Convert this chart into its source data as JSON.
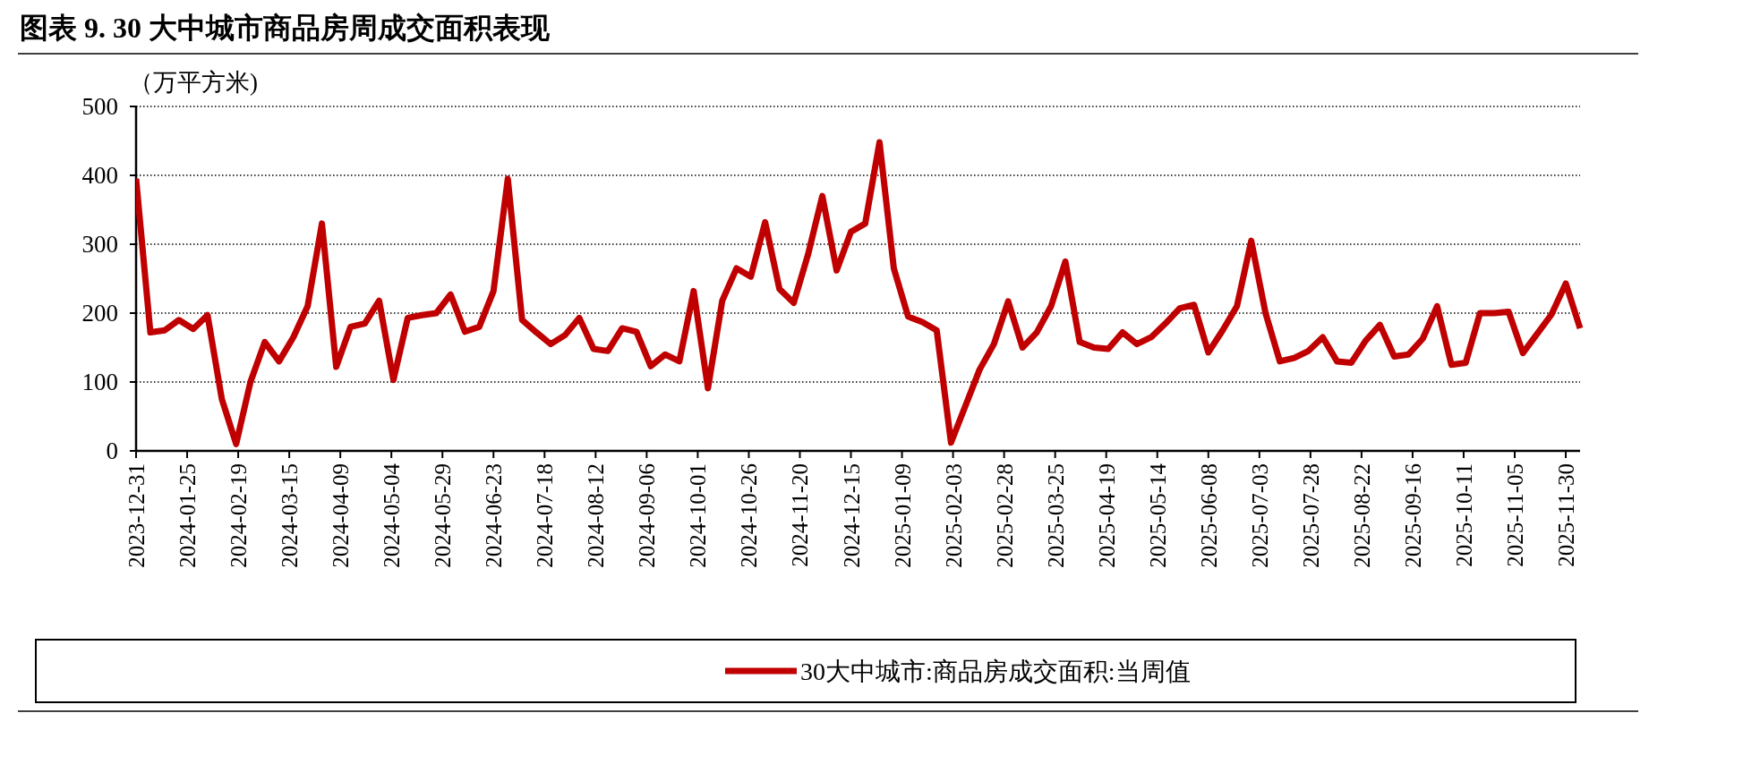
{
  "chart_data": {
    "type": "line",
    "title": "图表 9. 30 大中城市商品房周成交面积表现",
    "ylabel": "（万平方米)",
    "x": [
      "2023-12-31",
      "2024-01-07",
      "2024-01-14",
      "2024-01-21",
      "2024-01-28",
      "2024-02-04",
      "2024-02-11",
      "2024-02-18",
      "2024-02-25",
      "2024-03-03",
      "2024-03-10",
      "2024-03-17",
      "2024-03-24",
      "2024-03-31",
      "2024-04-07",
      "2024-04-14",
      "2024-04-21",
      "2024-04-28",
      "2024-05-05",
      "2024-05-12",
      "2024-05-19",
      "2024-05-26",
      "2024-06-02",
      "2024-06-09",
      "2024-06-16",
      "2024-06-23",
      "2024-06-30",
      "2024-07-07",
      "2024-07-14",
      "2024-07-21",
      "2024-07-28",
      "2024-08-04",
      "2024-08-11",
      "2024-08-18",
      "2024-08-25",
      "2024-09-01",
      "2024-09-08",
      "2024-09-15",
      "2024-09-22",
      "2024-09-29",
      "2024-10-06",
      "2024-10-13",
      "2024-10-20",
      "2024-10-27",
      "2024-11-03",
      "2024-11-10",
      "2024-11-17",
      "2024-11-24",
      "2024-12-01",
      "2024-12-08",
      "2024-12-15",
      "2024-12-22",
      "2024-12-29",
      "2025-01-05",
      "2025-01-12",
      "2025-01-19",
      "2025-01-26",
      "2025-02-02",
      "2025-02-09",
      "2025-02-16",
      "2025-02-23",
      "2025-03-02",
      "2025-03-09",
      "2025-03-16",
      "2025-03-23",
      "2025-03-30",
      "2025-04-06",
      "2025-04-13",
      "2025-04-20",
      "2025-04-27",
      "2025-05-04",
      "2025-05-11",
      "2025-05-18",
      "2025-05-25",
      "2025-06-01",
      "2025-06-08",
      "2025-06-15",
      "2025-06-22",
      "2025-06-29",
      "2025-07-06",
      "2025-07-13",
      "2025-07-20",
      "2025-07-27",
      "2025-08-03",
      "2025-08-10",
      "2025-08-17",
      "2025-08-24",
      "2025-08-31",
      "2025-09-07",
      "2025-09-14",
      "2025-09-21",
      "2025-09-28",
      "2025-10-05",
      "2025-10-12",
      "2025-10-19",
      "2025-10-26",
      "2025-11-02",
      "2025-11-09",
      "2025-11-16",
      "2025-11-23",
      "2025-11-30",
      "2025-12-07"
    ],
    "series": [
      {
        "name": "30大中城市:商品房成交面积:当周值",
        "color": "#c00000",
        "values": [
          395,
          172,
          175,
          190,
          177,
          197,
          75,
          10,
          100,
          158,
          130,
          165,
          210,
          330,
          122,
          180,
          185,
          218,
          103,
          193,
          197,
          200,
          227,
          173,
          180,
          232,
          395,
          190,
          172,
          155,
          168,
          193,
          148,
          145,
          178,
          173,
          123,
          140,
          130,
          232,
          91,
          218,
          265,
          253,
          332,
          235,
          215,
          285,
          370,
          262,
          318,
          330,
          448,
          265,
          195,
          187,
          175,
          12,
          65,
          118,
          155,
          217,
          150,
          172,
          210,
          275,
          158,
          150,
          148,
          172,
          155,
          165,
          185,
          207,
          212,
          143,
          175,
          210,
          305,
          200,
          130,
          135,
          145,
          165,
          130,
          128,
          160,
          183,
          137,
          140,
          163,
          210,
          125,
          128,
          200,
          200,
          202,
          142,
          170,
          198,
          243,
          178
        ]
      }
    ],
    "xlim": [
      "2023-12-31",
      "2025-12-07"
    ],
    "xticks": [
      "2023-12-31",
      "2024-01-25",
      "2024-02-19",
      "2024-03-15",
      "2024-04-09",
      "2024-05-04",
      "2024-05-29",
      "2024-06-23",
      "2024-07-18",
      "2024-08-12",
      "2024-09-06",
      "2024-10-01",
      "2024-10-26",
      "2024-11-20",
      "2024-12-15",
      "2025-01-09",
      "2025-02-03",
      "2025-02-28",
      "2025-03-25",
      "2025-04-19",
      "2025-05-14",
      "2025-06-08",
      "2025-07-03",
      "2025-07-28",
      "2025-08-22",
      "2025-09-16",
      "2025-10-11",
      "2025-11-05",
      "2025-11-30"
    ],
    "ylim": [
      0,
      500
    ],
    "yticks": [
      0,
      100,
      200,
      300,
      400,
      500
    ],
    "grid": "y",
    "legend": "bottom",
    "marker": "none",
    "line_style": "solid"
  }
}
